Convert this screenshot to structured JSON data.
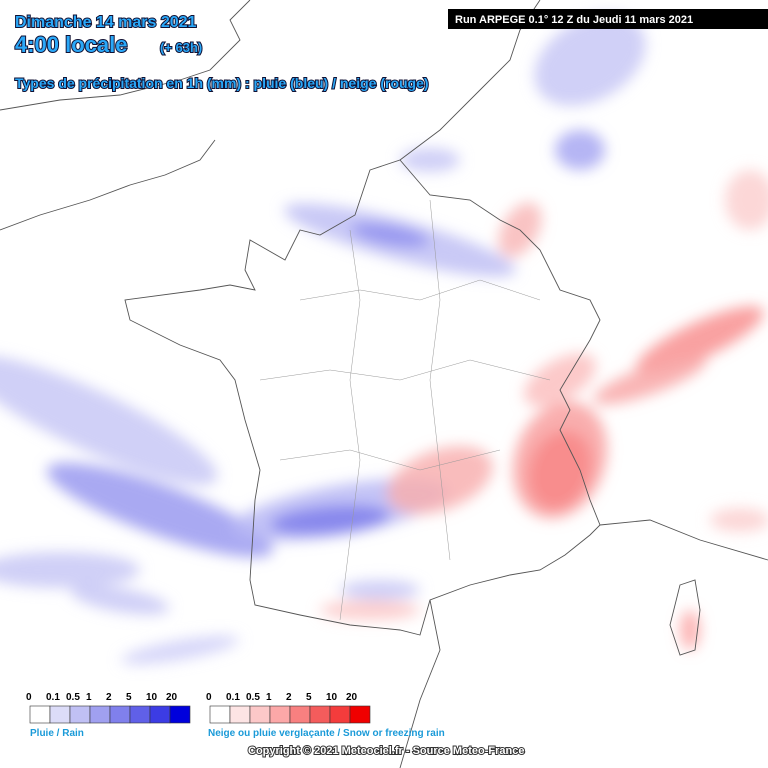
{
  "header": {
    "date": "Dimanche 14 mars 2021",
    "time": "4:00 locale",
    "lead": "(+ 63h)",
    "subtitle": "Types de précipitation en 1h (mm) : pluie (bleu) / neige (rouge)",
    "run": "Run ARPEGE 0.1° 12 Z du Jeudi 11 mars 2021"
  },
  "legend": {
    "rain": {
      "labels": [
        "0",
        "0.1",
        "0.5",
        "1",
        "2",
        "5",
        "10",
        "20"
      ],
      "caption": "Pluie / Rain"
    },
    "snow": {
      "labels": [
        "0",
        "0.1",
        "0.5",
        "1",
        "2",
        "5",
        "10",
        "20"
      ],
      "caption": "Neige ou pluie verglaçante / Snow or freezing rain"
    }
  },
  "footer": {
    "copyright": "Copyright © 2021 Meteociel.fr - Source Meteo-France"
  }
}
